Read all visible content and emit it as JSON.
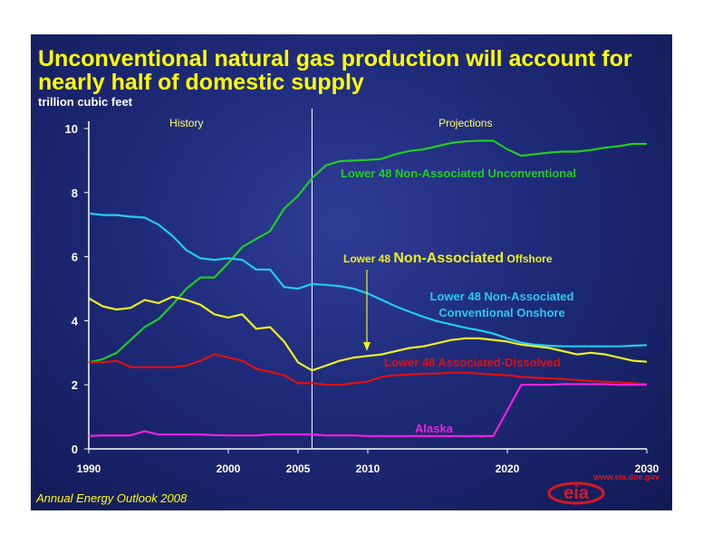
{
  "title": "Unconventional natural gas production will account for nearly half of domestic supply",
  "unit_label": "trillion cubic feet",
  "footer": "Annual Energy Outlook 2008",
  "logo": {
    "text": "eia",
    "url_text": "www.eia.doe.gov",
    "color": "#d71920"
  },
  "colors": {
    "background": "#1e2a78",
    "title": "#ffff00",
    "axis": "#ffffff"
  },
  "chart_data": {
    "type": "line",
    "title": "Unconventional natural gas production will account for nearly half of domestic supply",
    "ylabel": "trillion cubic feet",
    "xlim": [
      1990,
      2030
    ],
    "ylim": [
      0,
      10
    ],
    "yticks": [
      0,
      2,
      4,
      6,
      8,
      10
    ],
    "xticks": [
      1990,
      2000,
      2005,
      2010,
      2020,
      2030
    ],
    "grid": false,
    "divider_year": 2006,
    "regions": [
      {
        "label": "History",
        "x": 1997
      },
      {
        "label": "Projections",
        "x": 2017
      }
    ],
    "series": [
      {
        "name": "Lower 48 Non-Associated Unconventional",
        "color": "#22cc22",
        "x": [
          1990,
          1991,
          1992,
          1993,
          1994,
          1995,
          1996,
          1997,
          1998,
          1999,
          2000,
          2001,
          2002,
          2003,
          2004,
          2005,
          2006,
          2007,
          2008,
          2009,
          2010,
          2011,
          2012,
          2013,
          2014,
          2015,
          2016,
          2017,
          2018,
          2019,
          2020,
          2021,
          2022,
          2023,
          2024,
          2025,
          2026,
          2027,
          2028,
          2029,
          2030
        ],
        "y": [
          2.7,
          2.8,
          3.0,
          3.4,
          3.8,
          4.05,
          4.5,
          5.0,
          5.35,
          5.35,
          5.8,
          6.3,
          6.55,
          6.8,
          7.5,
          7.9,
          8.45,
          8.85,
          8.98,
          9.0,
          9.02,
          9.05,
          9.2,
          9.3,
          9.35,
          9.45,
          9.55,
          9.6,
          9.62,
          9.62,
          9.35,
          9.15,
          9.2,
          9.25,
          9.28,
          9.28,
          9.33,
          9.4,
          9.45,
          9.52,
          9.52
        ]
      },
      {
        "name": "Lower 48 Non-Associated Conventional Onshore",
        "color": "#22ccee",
        "x": [
          1990,
          1991,
          1992,
          1993,
          1994,
          1995,
          1996,
          1997,
          1998,
          1999,
          2000,
          2001,
          2002,
          2003,
          2004,
          2005,
          2006,
          2007,
          2008,
          2009,
          2010,
          2011,
          2012,
          2013,
          2014,
          2015,
          2016,
          2017,
          2018,
          2019,
          2020,
          2021,
          2022,
          2023,
          2024,
          2025,
          2026,
          2027,
          2028,
          2029,
          2030
        ],
        "y": [
          7.35,
          7.3,
          7.3,
          7.25,
          7.22,
          7.0,
          6.65,
          6.2,
          5.95,
          5.9,
          5.95,
          5.9,
          5.6,
          5.6,
          5.05,
          5.0,
          5.15,
          5.12,
          5.08,
          5.0,
          4.85,
          4.65,
          4.45,
          4.28,
          4.12,
          3.98,
          3.88,
          3.78,
          3.7,
          3.6,
          3.45,
          3.32,
          3.25,
          3.22,
          3.2,
          3.2,
          3.2,
          3.2,
          3.2,
          3.22,
          3.24
        ]
      },
      {
        "name": "Lower 48 Non-Associated Offshore",
        "color": "#eeee22",
        "x": [
          1990,
          1991,
          1992,
          1993,
          1994,
          1995,
          1996,
          1997,
          1998,
          1999,
          2000,
          2001,
          2002,
          2003,
          2004,
          2005,
          2006,
          2007,
          2008,
          2009,
          2010,
          2011,
          2012,
          2013,
          2014,
          2015,
          2016,
          2017,
          2018,
          2019,
          2020,
          2021,
          2022,
          2023,
          2024,
          2025,
          2026,
          2027,
          2028,
          2029,
          2030
        ],
        "y": [
          4.7,
          4.45,
          4.35,
          4.4,
          4.65,
          4.55,
          4.75,
          4.65,
          4.5,
          4.2,
          4.1,
          4.2,
          3.75,
          3.8,
          3.35,
          2.7,
          2.45,
          2.6,
          2.75,
          2.85,
          2.9,
          2.95,
          3.05,
          3.15,
          3.2,
          3.3,
          3.4,
          3.45,
          3.45,
          3.4,
          3.35,
          3.25,
          3.2,
          3.15,
          3.05,
          2.95,
          3.0,
          2.95,
          2.85,
          2.75,
          2.72
        ]
      },
      {
        "name": "Lower 48 Associated-Dissolved",
        "color": "#dd1111",
        "x": [
          1990,
          1991,
          1992,
          1993,
          1994,
          1995,
          1996,
          1997,
          1998,
          1999,
          2000,
          2001,
          2002,
          2003,
          2004,
          2005,
          2006,
          2007,
          2008,
          2009,
          2010,
          2011,
          2012,
          2013,
          2014,
          2015,
          2016,
          2017,
          2018,
          2019,
          2020,
          2021,
          2022,
          2023,
          2024,
          2025,
          2026,
          2027,
          2028,
          2029,
          2030
        ],
        "y": [
          2.7,
          2.7,
          2.75,
          2.55,
          2.55,
          2.55,
          2.55,
          2.6,
          2.75,
          2.95,
          2.85,
          2.75,
          2.5,
          2.4,
          2.3,
          2.05,
          2.05,
          2.0,
          2.0,
          2.05,
          2.1,
          2.25,
          2.3,
          2.32,
          2.35,
          2.35,
          2.38,
          2.38,
          2.35,
          2.32,
          2.3,
          2.25,
          2.22,
          2.2,
          2.18,
          2.15,
          2.12,
          2.1,
          2.08,
          2.05,
          2.02
        ]
      },
      {
        "name": "Alaska",
        "color": "#ee22dd",
        "x": [
          1990,
          1991,
          1992,
          1993,
          1994,
          1995,
          1996,
          1997,
          1998,
          1999,
          2000,
          2001,
          2002,
          2003,
          2004,
          2005,
          2006,
          2007,
          2008,
          2009,
          2010,
          2011,
          2012,
          2013,
          2014,
          2015,
          2016,
          2017,
          2018,
          2019,
          2020,
          2021,
          2022,
          2023,
          2024,
          2025,
          2026,
          2027,
          2028,
          2029,
          2030
        ],
        "y": [
          0.4,
          0.42,
          0.42,
          0.42,
          0.55,
          0.45,
          0.45,
          0.45,
          0.45,
          0.43,
          0.42,
          0.42,
          0.42,
          0.45,
          0.45,
          0.45,
          0.45,
          0.42,
          0.42,
          0.42,
          0.4,
          0.4,
          0.4,
          0.4,
          0.4,
          0.4,
          0.4,
          0.4,
          0.4,
          0.4,
          1.2,
          2.0,
          2.0,
          2.0,
          2.02,
          2.02,
          2.02,
          2.02,
          2.0,
          2.0,
          2.0
        ]
      }
    ],
    "annotations": [
      {
        "lines": [
          "Lower 48 Non-Associated Unconventional"
        ],
        "color": "#22cc22"
      },
      {
        "parts": [
          "Lower 48 ",
          "Non-Associated",
          " Offshore"
        ],
        "color": "#eeee22"
      },
      {
        "lines": [
          "Lower 48 Non-Associated",
          "Conventional Onshore"
        ],
        "color": "#22ccee"
      },
      {
        "lines": [
          "Lower 48 Associated-Dissolved"
        ],
        "color": "#dd1111"
      },
      {
        "lines": [
          "Alaska"
        ],
        "color": "#ee22dd"
      }
    ]
  }
}
